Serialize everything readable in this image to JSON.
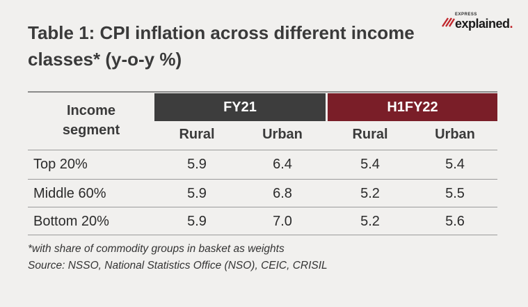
{
  "title_lines": [
    "Table 1: CPI inflation across different income",
    "classes* (y-o-y %)"
  ],
  "logo": {
    "kicker": "EXPRESS",
    "word": "explained",
    "dot": ".",
    "accent": "#c0272d"
  },
  "chart_data": {
    "type": "table",
    "row_header": [
      "Income",
      "segment"
    ],
    "groups": [
      {
        "label": "FY21",
        "color": "#3d3d3d",
        "columns": [
          "Rural",
          "Urban"
        ]
      },
      {
        "label": "H1FY22",
        "color": "#7a1e28",
        "columns": [
          "Rural",
          "Urban"
        ]
      }
    ],
    "rows": [
      {
        "label": "Top 20%",
        "values": [
          "5.9",
          "6.4",
          "5.4",
          "5.4"
        ]
      },
      {
        "label": "Middle 60%",
        "values": [
          "5.9",
          "6.8",
          "5.2",
          "5.5"
        ]
      },
      {
        "label": "Bottom 20%",
        "values": [
          "5.9",
          "7.0",
          "5.2",
          "5.6"
        ]
      }
    ]
  },
  "footnote": "*with share of commodity groups in basket as weights",
  "source": "Source: NSSO, National Statistics Office (NSO), CEIC, CRISIL"
}
